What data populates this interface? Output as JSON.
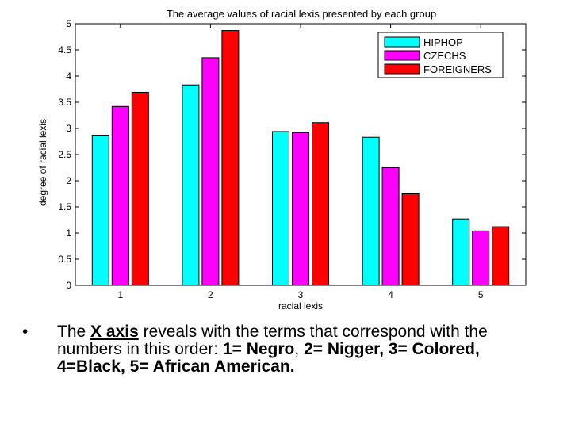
{
  "chart_data": {
    "type": "bar",
    "title": "The average values of racial lexis presented by each group",
    "xlabel": "racial lexis",
    "ylabel": "degree of racial lexis",
    "categories": [
      "1",
      "2",
      "3",
      "4",
      "5"
    ],
    "ylim": [
      0,
      5
    ],
    "yticks": [
      "0",
      "0.5",
      "1",
      "1.5",
      "2",
      "2.5",
      "3",
      "3.5",
      "4",
      "4.5",
      "5"
    ],
    "legend_position": "top-right",
    "series": [
      {
        "name": "HIPHOP",
        "color": "#00ffff",
        "values": [
          2.87,
          3.83,
          2.94,
          2.83,
          1.27
        ]
      },
      {
        "name": "CZECHS",
        "color": "#ff00ff",
        "values": [
          3.42,
          4.35,
          2.92,
          2.25,
          1.04
        ]
      },
      {
        "name": "FOREIGNERS",
        "color": "#ff0000",
        "values": [
          3.69,
          4.87,
          3.11,
          1.75,
          1.12
        ]
      }
    ]
  },
  "bullet": {
    "marker": "•",
    "t1": "The ",
    "x_axis": "X axis",
    "t2": " reveals with the terms that correspond with the numbers in this order: ",
    "term1": "1= Negro",
    "sep1": ", ",
    "term2": "2= Nigger, 3= Colored, 4=Black, 5= African American."
  }
}
